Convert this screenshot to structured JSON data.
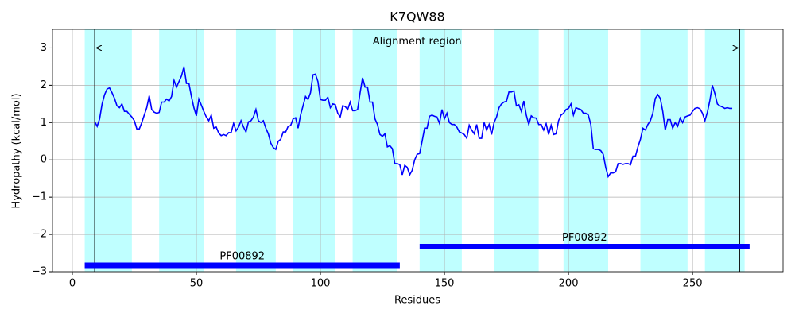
{
  "chart_data": {
    "type": "line",
    "title": "K7QW88",
    "x_label": "Residues",
    "y_label": "Hydropathy (kcal/mol)",
    "xlim": [
      -8,
      286.5
    ],
    "ylim": [
      -3,
      3.5
    ],
    "xticks": [
      0,
      50,
      100,
      150,
      200,
      250
    ],
    "yticks": [
      {
        "value": -3,
        "label": "−3"
      },
      {
        "value": -2,
        "label": "−2"
      },
      {
        "value": -1,
        "label": "−1"
      },
      0,
      1,
      2,
      3
    ],
    "grid": true,
    "color": "#0000ff",
    "hline": 0,
    "x": [
      9,
      10,
      11,
      12,
      13,
      14,
      15,
      16,
      17,
      18,
      19,
      20,
      21,
      22,
      23,
      24,
      25,
      26,
      27,
      28,
      29,
      30,
      31,
      32,
      33,
      34,
      35,
      36,
      37,
      38,
      39,
      40,
      41,
      42,
      43,
      44,
      45,
      46,
      47,
      48,
      49,
      50,
      51,
      52,
      53,
      54,
      55,
      56,
      57,
      58,
      59,
      60,
      61,
      62,
      63,
      64,
      65,
      66,
      67,
      68,
      69,
      70,
      71,
      72,
      73,
      74,
      75,
      76,
      77,
      78,
      79,
      80,
      81,
      82,
      83,
      84,
      85,
      86,
      87,
      88,
      89,
      90,
      91,
      92,
      93,
      94,
      95,
      96,
      97,
      98,
      99,
      100,
      101,
      102,
      103,
      104,
      105,
      106,
      107,
      108,
      109,
      110,
      111,
      112,
      113,
      114,
      115,
      116,
      117,
      118,
      119,
      120,
      121,
      122,
      123,
      124,
      125,
      126,
      127,
      128,
      129,
      130,
      131,
      132,
      133,
      134,
      135,
      136,
      137,
      138,
      139,
      140,
      141,
      142,
      143,
      144,
      145,
      146,
      147,
      148,
      149,
      150,
      151,
      152,
      153,
      154,
      155,
      156,
      157,
      158,
      159,
      160,
      161,
      162,
      163,
      164,
      165,
      166,
      167,
      168,
      169,
      170,
      171,
      172,
      173,
      174,
      175,
      176,
      177,
      178,
      179,
      180,
      181,
      182,
      183,
      184,
      185,
      186,
      187,
      188,
      189,
      190,
      191,
      192,
      193,
      194,
      195,
      196,
      197,
      198,
      199,
      200,
      201,
      202,
      203,
      204,
      205,
      206,
      207,
      208,
      209,
      210,
      211,
      212,
      213,
      214,
      215,
      216,
      217,
      218,
      219,
      220,
      221,
      222,
      223,
      224,
      225,
      226,
      227,
      228,
      229,
      230,
      231,
      232,
      233,
      234,
      235,
      236,
      237,
      238,
      239,
      240,
      241,
      242,
      243,
      244,
      245,
      246,
      247,
      248,
      249,
      250,
      251,
      252,
      253,
      254,
      255,
      256,
      257,
      258,
      259,
      260,
      261,
      262,
      263,
      264,
      265,
      266
    ],
    "values": [
      1.03,
      0.9,
      1.1,
      1.5,
      1.75,
      1.9,
      1.93,
      1.8,
      1.65,
      1.45,
      1.4,
      1.5,
      1.3,
      1.3,
      1.22,
      1.15,
      1.05,
      0.83,
      0.83,
      1.0,
      1.2,
      1.4,
      1.72,
      1.35,
      1.28,
      1.25,
      1.27,
      1.55,
      1.55,
      1.63,
      1.58,
      1.7,
      2.13,
      1.95,
      2.1,
      2.25,
      2.5,
      2.05,
      2.05,
      1.7,
      1.4,
      1.18,
      1.63,
      1.47,
      1.3,
      1.15,
      1.05,
      1.2,
      0.85,
      0.88,
      0.72,
      0.65,
      0.68,
      0.65,
      0.73,
      0.73,
      0.98,
      0.78,
      0.88,
      1.05,
      0.88,
      0.75,
      1.02,
      1.05,
      1.15,
      1.35,
      1.05,
      1.0,
      1.05,
      0.85,
      0.7,
      0.45,
      0.33,
      0.28,
      0.5,
      0.55,
      0.75,
      0.75,
      0.9,
      0.92,
      1.1,
      1.13,
      0.85,
      1.2,
      1.45,
      1.7,
      1.62,
      1.8,
      2.28,
      2.3,
      2.1,
      1.62,
      1.6,
      1.6,
      1.68,
      1.4,
      1.5,
      1.48,
      1.25,
      1.15,
      1.45,
      1.43,
      1.35,
      1.55,
      1.32,
      1.32,
      1.35,
      1.8,
      2.2,
      1.95,
      1.95,
      1.55,
      1.55,
      1.1,
      0.95,
      0.68,
      0.63,
      0.7,
      0.35,
      0.38,
      0.3,
      -0.1,
      -0.1,
      -0.13,
      -0.4,
      -0.15,
      -0.2,
      -0.4,
      -0.28,
      0.0,
      0.15,
      0.17,
      0.5,
      0.85,
      0.85,
      1.17,
      1.2,
      1.17,
      1.15,
      0.98,
      1.35,
      1.1,
      1.25,
      1.0,
      0.95,
      0.95,
      0.88,
      0.75,
      0.72,
      0.68,
      0.58,
      0.93,
      0.8,
      0.7,
      0.95,
      0.58,
      0.58,
      1.0,
      0.8,
      0.95,
      0.68,
      1.0,
      1.15,
      1.4,
      1.5,
      1.55,
      1.57,
      1.82,
      1.82,
      1.85,
      1.45,
      1.48,
      1.3,
      1.58,
      1.2,
      0.95,
      1.18,
      1.13,
      1.12,
      0.95,
      0.95,
      0.8,
      0.97,
      0.68,
      0.93,
      0.68,
      0.7,
      1.05,
      1.2,
      1.25,
      1.35,
      1.38,
      1.5,
      1.2,
      1.4,
      1.37,
      1.35,
      1.25,
      1.25,
      1.2,
      0.95,
      0.3,
      0.28,
      0.28,
      0.25,
      0.15,
      -0.2,
      -0.45,
      -0.35,
      -0.35,
      -0.32,
      -0.1,
      -0.1,
      -0.12,
      -0.1,
      -0.1,
      -0.13,
      0.1,
      0.1,
      0.35,
      0.55,
      0.85,
      0.8,
      0.95,
      1.05,
      1.25,
      1.65,
      1.75,
      1.65,
      1.3,
      0.8,
      1.08,
      1.08,
      0.85,
      1.0,
      0.9,
      1.12,
      1.0,
      1.15,
      1.18,
      1.2,
      1.3,
      1.38,
      1.4,
      1.37,
      1.25,
      1.05,
      1.28,
      1.6,
      2.0,
      1.78,
      1.5,
      1.45,
      1.42,
      1.38,
      1.4,
      1.38,
      1.38
    ],
    "shaded_regions": [
      [
        5,
        24
      ],
      [
        35,
        53
      ],
      [
        66,
        82
      ],
      [
        89,
        106
      ],
      [
        113,
        131
      ],
      [
        140,
        157
      ],
      [
        170,
        188
      ],
      [
        198,
        216
      ],
      [
        229,
        248
      ],
      [
        255,
        271
      ]
    ],
    "shade_color": "#bfffff",
    "vlines": [
      9,
      269
    ],
    "annotation": {
      "text": "Alignment region",
      "start": 9,
      "end": 269,
      "y": 3
    },
    "domains": [
      {
        "name": "PF00892",
        "start": 5,
        "end": 132,
        "y": -2.83
      },
      {
        "name": "PF00892",
        "start": 140,
        "end": 273,
        "y": -2.33
      }
    ],
    "domain_color": "#0000ff"
  }
}
